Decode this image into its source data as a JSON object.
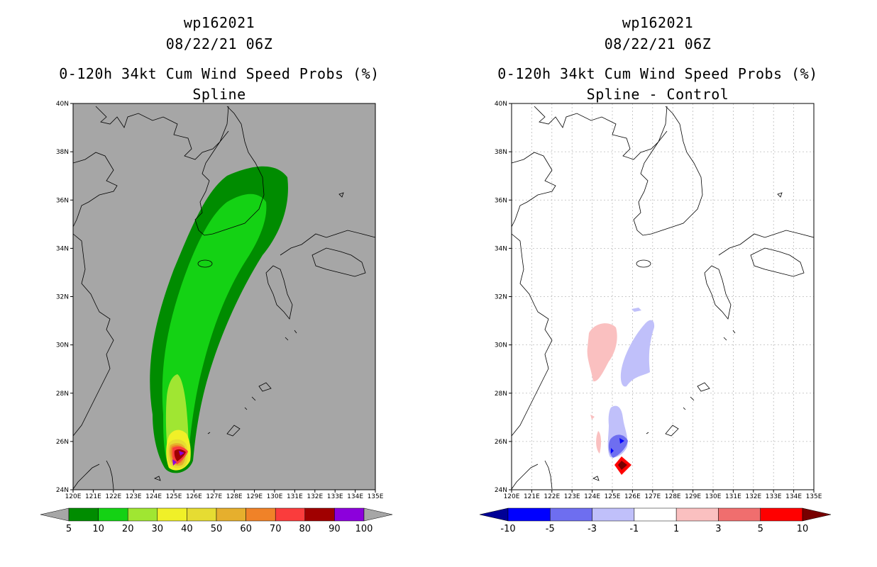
{
  "left_panel": {
    "storm_id": "wp162021",
    "datetime": "08/22/21 06Z",
    "product": "0-120h 34kt Cum Wind Speed Probs (%)",
    "subtitle": "Spline",
    "lat_labels": [
      "24N",
      "26N",
      "28N",
      "30N",
      "32N",
      "34N",
      "36N",
      "38N",
      "40N"
    ],
    "lon_labels": [
      "120E",
      "121E",
      "122E",
      "123E",
      "124E",
      "125E",
      "126E",
      "127E",
      "128E",
      "129E",
      "130E",
      "131E",
      "132E",
      "133E",
      "134E",
      "135E"
    ],
    "colorbar": {
      "labels": [
        "5",
        "10",
        "20",
        "30",
        "40",
        "50",
        "60",
        "70",
        "80",
        "90",
        "100"
      ],
      "colors": [
        "#008c00",
        "#14d214",
        "#a0e632",
        "#f0f028",
        "#e6dc32",
        "#e6af2d",
        "#f08228",
        "#fa3c3c",
        "#a00000",
        "#8c00dc"
      ],
      "under_color": "#a6a6a6",
      "over_color": "#a6a6a6"
    },
    "background_color": "#a6a6a6"
  },
  "right_panel": {
    "storm_id": "wp162021",
    "datetime": "08/22/21 06Z",
    "product": "0-120h 34kt Cum Wind Speed Probs (%)",
    "subtitle": "Spline - Control",
    "lat_labels": [
      "24N",
      "26N",
      "28N",
      "30N",
      "32N",
      "34N",
      "36N",
      "38N",
      "40N"
    ],
    "lon_labels": [
      "120E",
      "121E",
      "122E",
      "123E",
      "124E",
      "125E",
      "126E",
      "127E",
      "128E",
      "129E",
      "130E",
      "131E",
      "132E",
      "133E",
      "134E",
      "135E"
    ],
    "colorbar": {
      "labels": [
        "-10",
        "-5",
        "-3",
        "-1",
        "1",
        "3",
        "5",
        "10"
      ],
      "colors": [
        "#0000ff",
        "#6e6ef0",
        "#c0c0fa",
        "#ffffff",
        "#fac0c0",
        "#f06e6e",
        "#ff0000"
      ],
      "under_color": "#000096",
      "over_color": "#780000"
    },
    "background_color": "#ffffff"
  }
}
